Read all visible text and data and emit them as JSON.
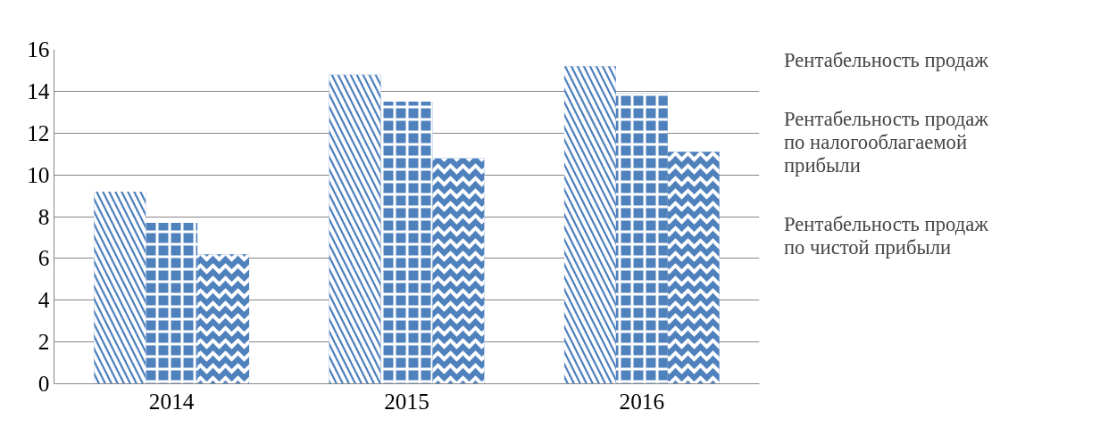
{
  "chart_data": {
    "type": "bar",
    "categories": [
      "2014",
      "2015",
      "2016"
    ],
    "series": [
      {
        "name": "Рентабельность продаж",
        "color": "#4f81bd",
        "values": [
          9.2,
          14.8,
          15.2
        ]
      },
      {
        "name": "Рентабельность продаж по налогооблагаемой прибыли",
        "color": "#4f81bd",
        "values": [
          7.7,
          13.5,
          13.9
        ]
      },
      {
        "name": "Рентабельность продаж по чистой прибыли",
        "color": "#4f81bd",
        "values": [
          6.2,
          10.8,
          11.1
        ]
      }
    ],
    "ylim": [
      0,
      16
    ],
    "yticks": [
      0,
      2,
      4,
      6,
      8,
      10,
      12,
      14,
      16
    ],
    "grid": "y",
    "legend": "right"
  }
}
